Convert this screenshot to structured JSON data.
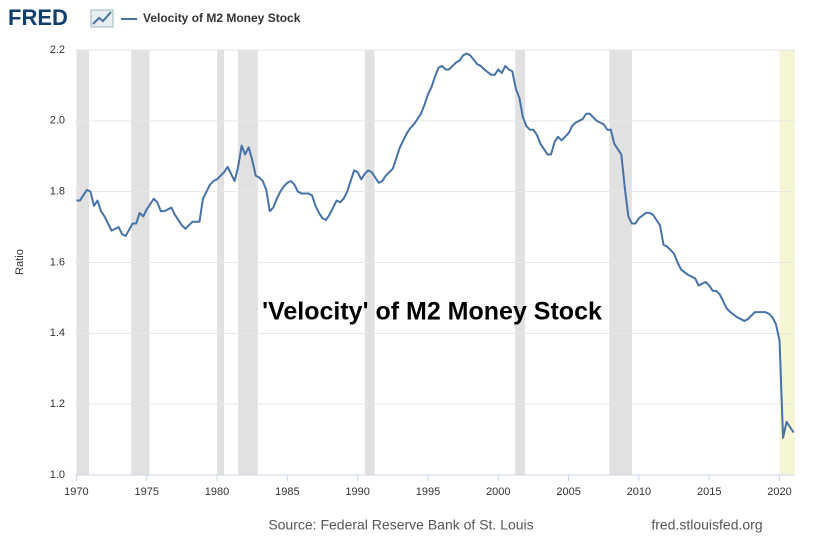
{
  "chart_data": {
    "type": "line",
    "logo": "FRED",
    "annotation": "'Velocity' of M2 Money Stock",
    "ylabel": "Ratio",
    "source": "Source: Federal Reserve Bank of St. Louis",
    "site": "fred.stlouisfed.org",
    "xlim": [
      1969.9,
      2021.1
    ],
    "xticks": [
      1970,
      1975,
      1980,
      1985,
      1990,
      1995,
      2000,
      2005,
      2010,
      2015,
      2020
    ],
    "ylim": [
      1.0,
      2.2
    ],
    "yticks": [
      {
        "value": 1.0,
        "label": "1.0"
      },
      1.2,
      1.4,
      1.6,
      1.8,
      {
        "value": 2.0,
        "label": "2.0"
      },
      2.2
    ],
    "grid": true,
    "recession_color": "#e1e1e1",
    "recessions": [
      {
        "start": 1970.0,
        "end": 1970.9
      },
      {
        "start": 1973.9,
        "end": 1975.2
      },
      {
        "start": 1980.0,
        "end": 1980.5
      },
      {
        "start": 1981.5,
        "end": 1982.9
      },
      {
        "start": 1990.5,
        "end": 1991.2
      },
      {
        "start": 2001.2,
        "end": 2001.9
      },
      {
        "start": 2007.9,
        "end": 2009.5
      },
      {
        "start": 2020.0,
        "end": 2021.1,
        "color": "#f6f6d6"
      }
    ],
    "series": [
      {
        "name": "Velocity of M2 Money Stock",
        "color": "#4572a7",
        "x": [
          1970.0,
          1970.25,
          1970.5,
          1970.75,
          1971.0,
          1971.25,
          1971.5,
          1971.75,
          1972.0,
          1972.5,
          1973.0,
          1973.25,
          1973.5,
          1974.0,
          1974.25,
          1974.5,
          1974.75,
          1975.0,
          1975.5,
          1975.75,
          1976.0,
          1976.25,
          1976.5,
          1976.75,
          1977.0,
          1977.5,
          1977.75,
          1978.0,
          1978.25,
          1978.75,
          1979.0,
          1979.25,
          1979.5,
          1979.75,
          1980.0,
          1980.5,
          1980.75,
          1981.0,
          1981.25,
          1981.5,
          1981.75,
          1982.0,
          1982.25,
          1982.5,
          1982.75,
          1983.0,
          1983.25,
          1983.5,
          1983.75,
          1984.0,
          1984.25,
          1984.5,
          1984.75,
          1985.0,
          1985.25,
          1985.5,
          1985.75,
          1986.0,
          1986.5,
          1986.75,
          1987.0,
          1987.25,
          1987.5,
          1987.75,
          1988.0,
          1988.5,
          1988.75,
          1989.0,
          1989.25,
          1989.5,
          1989.75,
          1990.0,
          1990.25,
          1990.5,
          1990.75,
          1991.0,
          1991.25,
          1991.5,
          1991.75,
          1992.0,
          1992.5,
          1992.75,
          1993.0,
          1993.5,
          1993.75,
          1994.0,
          1994.5,
          1994.75,
          1995.0,
          1995.25,
          1995.5,
          1995.75,
          1996.0,
          1996.25,
          1996.5,
          1996.75,
          1997.0,
          1997.25,
          1997.5,
          1997.75,
          1998.0,
          1998.5,
          1998.75,
          1999.0,
          1999.5,
          1999.75,
          2000.0,
          2000.25,
          2000.5,
          2000.75,
          2001.0,
          2001.25,
          2001.5,
          2001.75,
          2002.0,
          2002.25,
          2002.5,
          2002.75,
          2003.0,
          2003.5,
          2003.75,
          2004.0,
          2004.25,
          2004.5,
          2004.75,
          2005.0,
          2005.25,
          2005.5,
          2006.0,
          2006.25,
          2006.5,
          2006.75,
          2007.0,
          2007.5,
          2007.75,
          2008.0,
          2008.25,
          2008.75,
          2009.0,
          2009.25,
          2009.5,
          2009.75,
          2010.0,
          2010.5,
          2010.75,
          2011.0,
          2011.25,
          2011.5,
          2011.75,
          2012.0,
          2012.25,
          2012.5,
          2012.75,
          2013.0,
          2013.5,
          2013.75,
          2014.0,
          2014.25,
          2014.75,
          2015.0,
          2015.25,
          2015.5,
          2015.75,
          2016.0,
          2016.25,
          2016.5,
          2017.0,
          2017.5,
          2017.75,
          2018.0,
          2018.25,
          2018.75,
          2019.0,
          2019.25,
          2019.5,
          2019.75,
          2020.0,
          2020.25,
          2020.5,
          2020.75,
          2021.0
        ],
        "values": [
          1.775,
          1.775,
          1.79,
          1.805,
          1.8,
          1.76,
          1.775,
          1.745,
          1.73,
          1.69,
          1.7,
          1.68,
          1.675,
          1.71,
          1.71,
          1.74,
          1.73,
          1.75,
          1.78,
          1.77,
          1.745,
          1.745,
          1.75,
          1.755,
          1.735,
          1.705,
          1.695,
          1.705,
          1.715,
          1.715,
          1.78,
          1.8,
          1.82,
          1.83,
          1.835,
          1.855,
          1.87,
          1.85,
          1.83,
          1.87,
          1.93,
          1.905,
          1.925,
          1.89,
          1.845,
          1.84,
          1.83,
          1.805,
          1.745,
          1.755,
          1.78,
          1.8,
          1.815,
          1.825,
          1.83,
          1.82,
          1.8,
          1.795,
          1.795,
          1.79,
          1.76,
          1.74,
          1.725,
          1.72,
          1.735,
          1.775,
          1.77,
          1.78,
          1.8,
          1.83,
          1.86,
          1.855,
          1.835,
          1.85,
          1.86,
          1.855,
          1.84,
          1.825,
          1.83,
          1.845,
          1.865,
          1.895,
          1.925,
          1.965,
          1.98,
          1.99,
          2.02,
          2.045,
          2.075,
          2.095,
          2.125,
          2.15,
          2.155,
          2.145,
          2.145,
          2.155,
          2.165,
          2.17,
          2.185,
          2.19,
          2.185,
          2.16,
          2.155,
          2.145,
          2.13,
          2.13,
          2.145,
          2.135,
          2.155,
          2.145,
          2.14,
          2.09,
          2.065,
          2.01,
          1.985,
          1.975,
          1.975,
          1.96,
          1.935,
          1.905,
          1.905,
          1.94,
          1.955,
          1.945,
          1.955,
          1.965,
          1.985,
          1.995,
          2.005,
          2.02,
          2.02,
          2.01,
          2.0,
          1.99,
          1.975,
          1.975,
          1.935,
          1.905,
          1.81,
          1.73,
          1.71,
          1.71,
          1.725,
          1.74,
          1.74,
          1.735,
          1.72,
          1.705,
          1.65,
          1.645,
          1.635,
          1.625,
          1.6,
          1.58,
          1.565,
          1.56,
          1.555,
          1.535,
          1.545,
          1.535,
          1.52,
          1.52,
          1.51,
          1.49,
          1.47,
          1.46,
          1.445,
          1.435,
          1.44,
          1.45,
          1.46,
          1.46,
          1.46,
          1.455,
          1.445,
          1.425,
          1.38,
          1.105,
          1.15,
          1.135,
          1.12
        ]
      }
    ]
  }
}
